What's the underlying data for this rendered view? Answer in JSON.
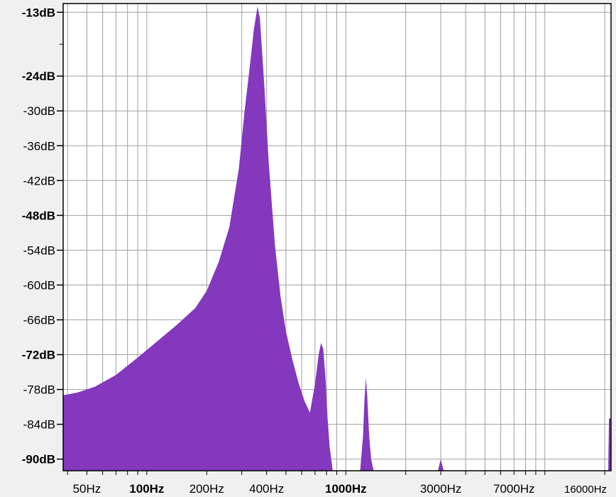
{
  "chart_data": {
    "type": "area",
    "title": "",
    "xlabel": "",
    "ylabel": "",
    "x_scale": "log",
    "xlim": [
      38,
      21500
    ],
    "ylim": [
      -92,
      -11.5
    ],
    "grid": true,
    "legend": "none",
    "colors": {
      "fill": "#8338be",
      "grid": "#a0a0a0",
      "plot_bg": "#ffffff",
      "frame": "#000000"
    },
    "y_ticks": [
      {
        "value": -13,
        "label": "-13dB",
        "bold": true
      },
      {
        "value": -24,
        "label": "-24dB",
        "bold": true
      },
      {
        "value": -30,
        "label": "-30dB",
        "bold": false
      },
      {
        "value": -36,
        "label": "-36dB",
        "bold": false
      },
      {
        "value": -42,
        "label": "-42dB",
        "bold": false
      },
      {
        "value": -48,
        "label": "-48dB",
        "bold": true
      },
      {
        "value": -54,
        "label": "-54dB",
        "bold": false
      },
      {
        "value": -60,
        "label": "-60dB",
        "bold": false
      },
      {
        "value": -66,
        "label": "-66dB",
        "bold": false
      },
      {
        "value": -72,
        "label": "-72dB",
        "bold": true
      },
      {
        "value": -78,
        "label": "-78dB",
        "bold": false
      },
      {
        "value": -84,
        "label": "-84dB",
        "bold": false
      },
      {
        "value": -90,
        "label": "-90dB",
        "bold": true
      }
    ],
    "x_ticks": [
      {
        "value": 50,
        "label": "50Hz",
        "bold": false,
        "small": false
      },
      {
        "value": 100,
        "label": "100Hz",
        "bold": true,
        "small": false
      },
      {
        "value": 200,
        "label": "200Hz",
        "bold": false,
        "small": false
      },
      {
        "value": 400,
        "label": "400Hz",
        "bold": false,
        "small": false
      },
      {
        "value": 1000,
        "label": "1000Hz",
        "bold": true,
        "small": false
      },
      {
        "value": 3000,
        "label": "3000Hz",
        "bold": false,
        "small": false
      },
      {
        "value": 7000,
        "label": "7000Hz",
        "bold": false,
        "small": false
      },
      {
        "value": 16000,
        "label": "16000Hz",
        "bold": false,
        "small": true
      }
    ],
    "series": [
      {
        "x": [
          38,
          45,
          55,
          70,
          90,
          110,
          140,
          175,
          200,
          230,
          260,
          290,
          310,
          330,
          345,
          360,
          370,
          390,
          410,
          440,
          470,
          500,
          540,
          580,
          620,
          660,
          700,
          730,
          750,
          770,
          790,
          810,
          830,
          860,
          890,
          920,
          950,
          980,
          1000,
          1100,
          1180,
          1220,
          1240,
          1260,
          1280,
          1310,
          1340,
          1380,
          1400,
          1500,
          2000,
          2900,
          3000,
          3100,
          5000,
          10000,
          20000,
          20800,
          21000,
          21500
        ],
        "y": [
          -79,
          -78.5,
          -77.5,
          -75.5,
          -72.5,
          -70,
          -67,
          -64,
          -61,
          -56,
          -50,
          -40,
          -30,
          -22,
          -16,
          -12,
          -14,
          -26,
          -39,
          -53,
          -62,
          -68,
          -73,
          -77,
          -80,
          -82,
          -77,
          -72,
          -70,
          -71,
          -76,
          -83,
          -88,
          -92,
          -92,
          -92,
          -92,
          -92,
          -92,
          -92,
          -92,
          -86,
          -80,
          -76,
          -79,
          -86,
          -90,
          -92,
          -92,
          -92,
          -92,
          -92,
          -90,
          -92,
          -92,
          -92,
          -92,
          -92,
          -83,
          -83
        ]
      }
    ]
  }
}
